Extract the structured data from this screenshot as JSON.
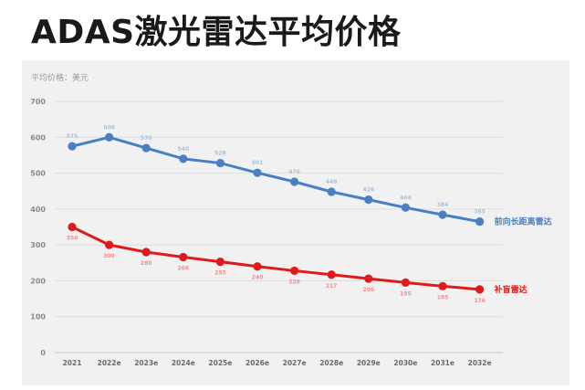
{
  "page": {
    "title": "ADAS激光雷达平均价格"
  },
  "colors": {
    "series_blue": "#4a7fc4",
    "series_red": "#e01a1a",
    "panel_bg": "#f1f1f1",
    "grid": "#dedede"
  },
  "chart_data": {
    "type": "line",
    "title": "",
    "ylabel": "平均价格：美元",
    "xlabel": "",
    "ylim": [
      0,
      700
    ],
    "yticks": [
      0,
      100,
      200,
      300,
      400,
      500,
      600,
      700
    ],
    "grid": true,
    "legend": "inline-right",
    "categories": [
      "2021",
      "2022e",
      "2023e",
      "2024e",
      "2025e",
      "2026e",
      "2027e",
      "2028e",
      "2029e",
      "2030e",
      "2031e",
      "2032e"
    ],
    "series": [
      {
        "name": "前向长距离雷达",
        "color": "#4a7fc4",
        "label_color": "#a6bfe2",
        "values": [
          575,
          600,
          570,
          540,
          528,
          501,
          476,
          448,
          426,
          404,
          384,
          365
        ]
      },
      {
        "name": "补盲雷达",
        "color": "#e01a1a",
        "label_color": "#f28d8d",
        "values": [
          350,
          300,
          280,
          266,
          253,
          240,
          228,
          217,
          206,
          195,
          185,
          176
        ]
      }
    ]
  }
}
